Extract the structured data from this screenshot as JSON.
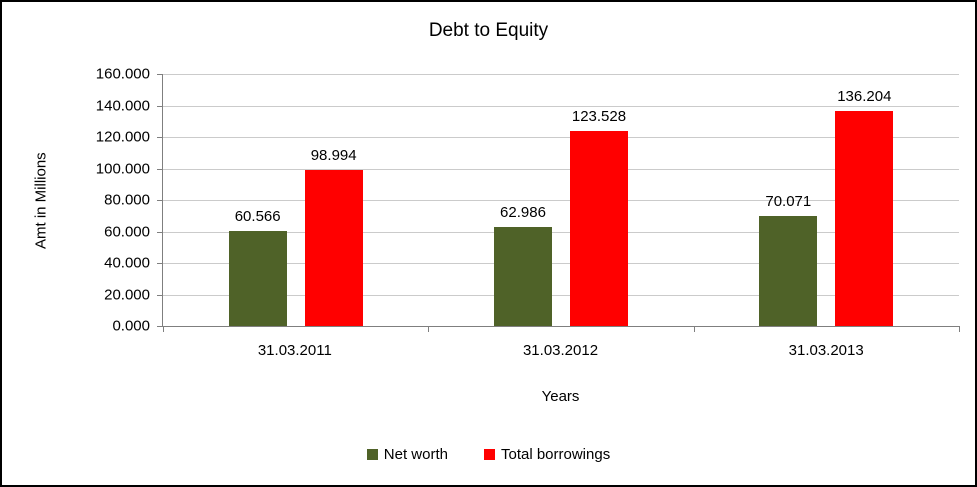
{
  "chart_data": {
    "type": "bar",
    "title": "Debt to Equity",
    "xlabel": "Years",
    "ylabel": "Amt in Millions",
    "categories": [
      "31.03.2011",
      "31.03.2012",
      "31.03.2013"
    ],
    "series": [
      {
        "name": "Net worth",
        "color": "#4F6228",
        "values": [
          60.566,
          62.986,
          70.071
        ]
      },
      {
        "name": "Total borrowings",
        "color": "#FF0000",
        "values": [
          98.994,
          123.528,
          136.204
        ]
      }
    ],
    "ylim": [
      0,
      160
    ],
    "ytick_step": 20,
    "ytick_decimals": 3,
    "grid": true,
    "legend_position": "bottom"
  }
}
